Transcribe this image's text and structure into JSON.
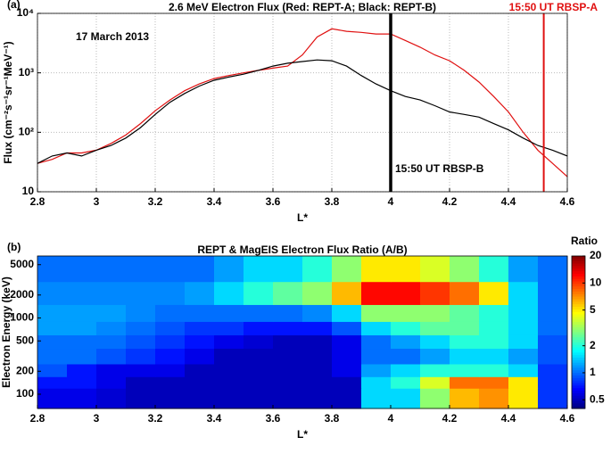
{
  "chart_data": [
    {
      "type": "line",
      "panel_label": "(a)",
      "title": "2.6 MeV Electron Flux  (Red: REPT-A; Black: REPT-B)",
      "xlabel": "L*",
      "ylabel": "Flux (cm⁻²s⁻¹sr⁻¹MeV⁻¹)",
      "annotation": "17 March 2013",
      "log_y": true,
      "grid": true,
      "xlim": [
        2.8,
        4.6
      ],
      "xticks": [
        2.8,
        3,
        3.2,
        3.4,
        3.6,
        3.8,
        4,
        4.2,
        4.4,
        4.6
      ],
      "ylim": [
        10,
        10000
      ],
      "yticks": [
        10,
        {
          "value": 100,
          "label": "10²"
        },
        {
          "value": 1000,
          "label": "10³"
        },
        {
          "value": 10000,
          "label": "10⁴"
        }
      ],
      "x": [
        2.8,
        2.85,
        2.9,
        2.95,
        3.0,
        3.05,
        3.1,
        3.15,
        3.2,
        3.25,
        3.3,
        3.35,
        3.4,
        3.45,
        3.5,
        3.55,
        3.6,
        3.65,
        3.7,
        3.75,
        3.8,
        3.85,
        3.9,
        3.95,
        4.0,
        4.05,
        4.1,
        4.15,
        4.2,
        4.25,
        4.3,
        4.35,
        4.4,
        4.45,
        4.5,
        4.55,
        4.6
      ],
      "series": [
        {
          "color": "#e01010",
          "values": [
            30,
            35,
            45,
            45,
            50,
            65,
            90,
            140,
            230,
            350,
            500,
            650,
            800,
            900,
            1000,
            1100,
            1200,
            1300,
            2000,
            4000,
            5500,
            5000,
            4800,
            4500,
            4500,
            3500,
            2700,
            2000,
            1600,
            1100,
            700,
            400,
            220,
            100,
            50,
            30,
            18
          ]
        },
        {
          "color": "#000000",
          "values": [
            30,
            40,
            45,
            40,
            50,
            60,
            80,
            120,
            200,
            320,
            450,
            600,
            750,
            850,
            950,
            1100,
            1300,
            1450,
            1550,
            1650,
            1600,
            1300,
            900,
            650,
            500,
            400,
            350,
            280,
            220,
            200,
            180,
            140,
            110,
            80,
            60,
            50,
            40
          ]
        }
      ],
      "vlines": [
        {
          "x": 4,
          "color": "#000000",
          "label": "15:50 UT RBSP-B"
        },
        {
          "x": 4.52,
          "color": "#e01010",
          "label": "15:50 UT RBSP-A"
        }
      ]
    },
    {
      "type": "heatmap",
      "panel_label": "(b)",
      "title": "REPT & MagEIS Electron Flux Ratio (A/B)",
      "xlabel": "L*",
      "ylabel": "Electron Energy (keV)",
      "colorbar_label": "Ratio",
      "log_y": true,
      "log_color": true,
      "xlim": [
        2.8,
        4.6
      ],
      "xticks": [
        2.8,
        3,
        3.2,
        3.4,
        3.6,
        3.8,
        4,
        4.2,
        4.4,
        4.6
      ],
      "ylim": [
        65,
        6500
      ],
      "yticks": [
        100,
        200,
        500,
        1000,
        2000,
        5000
      ],
      "clim": [
        0.4,
        20
      ],
      "cticks": [
        0.5,
        1,
        2,
        5,
        10,
        20
      ],
      "x_bins": [
        2.8,
        2.9,
        3.0,
        3.1,
        3.2,
        3.3,
        3.4,
        3.5,
        3.6,
        3.7,
        3.8,
        3.9,
        4.0,
        4.1,
        4.2,
        4.3,
        4.4,
        4.5,
        4.6
      ],
      "y_bins": [
        65,
        120,
        170,
        250,
        400,
        600,
        900,
        1500,
        3000,
        6500
      ],
      "values": [
        [
          0.6,
          0.6,
          0.55,
          0.5,
          0.5,
          0.5,
          0.5,
          0.5,
          0.5,
          0.5,
          0.5,
          1.5,
          1.5,
          3,
          6,
          7,
          5,
          0.8
        ],
        [
          0.7,
          0.7,
          0.6,
          0.5,
          0.5,
          0.5,
          0.5,
          0.5,
          0.5,
          0.5,
          0.5,
          1.5,
          2,
          4,
          8,
          8,
          5,
          0.8
        ],
        [
          0.9,
          0.7,
          0.6,
          0.6,
          0.6,
          0.5,
          0.5,
          0.5,
          0.5,
          0.5,
          0.6,
          1.2,
          1.5,
          2,
          2,
          2,
          1.5,
          0.8
        ],
        [
          1,
          1,
          0.9,
          0.8,
          0.7,
          0.6,
          0.5,
          0.5,
          0.5,
          0.5,
          0.6,
          1,
          1,
          1.2,
          1.5,
          1.5,
          1.2,
          0.9
        ],
        [
          1,
          1,
          1,
          0.9,
          0.8,
          0.7,
          0.6,
          0.55,
          0.5,
          0.5,
          0.6,
          1,
          1.2,
          1.5,
          2,
          2,
          1.5,
          0.9
        ],
        [
          1.2,
          1.2,
          1.1,
          1,
          0.9,
          0.8,
          0.8,
          0.7,
          0.7,
          0.7,
          0.9,
          1.5,
          2,
          2.5,
          2.5,
          2,
          1.5,
          1
        ],
        [
          1.2,
          1.2,
          1.2,
          1.1,
          1,
          1,
          1,
          1,
          1,
          1.1,
          1.5,
          3,
          3,
          3,
          2.5,
          2,
          1.5,
          1
        ],
        [
          1.1,
          1.1,
          1.1,
          1.1,
          1.1,
          1.2,
          1.5,
          2,
          2.5,
          3,
          6,
          12,
          12,
          10,
          8,
          5,
          1.5,
          1
        ],
        [
          1,
          1,
          1,
          1,
          1,
          1,
          1.2,
          1.5,
          1.5,
          2,
          3,
          5,
          5,
          4,
          3,
          2,
          1.2,
          1
        ]
      ]
    }
  ]
}
